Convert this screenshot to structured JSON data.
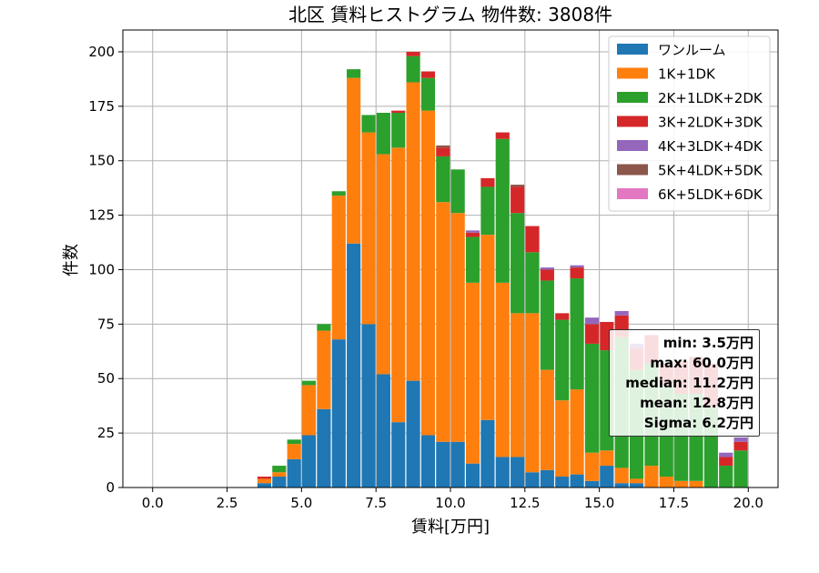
{
  "chart_data": {
    "type": "bar",
    "title": "北区 賃料ヒストグラム  物件数: 3808件",
    "xlabel": "賃料[万円]",
    "ylabel": "件数",
    "xlim": [
      -1,
      21
    ],
    "ylim": [
      0,
      210
    ],
    "xticks": [
      0.0,
      2.5,
      5.0,
      7.5,
      10.0,
      12.5,
      15.0,
      17.5,
      20.0
    ],
    "xtick_labels": [
      "0.0",
      "2.5",
      "5.0",
      "7.5",
      "10.0",
      "12.5",
      "15.0",
      "17.5",
      "20.0"
    ],
    "yticks": [
      0,
      25,
      50,
      75,
      100,
      125,
      150,
      175,
      200
    ],
    "ytick_labels": [
      "0",
      "25",
      "50",
      "75",
      "100",
      "125",
      "150",
      "175",
      "200"
    ],
    "grid": true,
    "stacked": true,
    "bin_width": 0.5,
    "legend_position": "top-right",
    "bins": [
      3.75,
      4.25,
      4.75,
      5.25,
      5.75,
      6.25,
      6.75,
      7.25,
      7.75,
      8.25,
      8.75,
      9.25,
      9.75,
      10.25,
      10.75,
      11.25,
      11.75,
      12.25,
      12.75,
      13.25,
      13.75,
      14.25,
      14.75,
      15.25,
      15.75,
      16.25,
      16.75,
      17.25,
      17.75,
      18.25,
      18.75,
      19.25,
      19.75
    ],
    "series": [
      {
        "name": "ワンルーム",
        "color": "#1f77b4",
        "values": [
          2,
          5,
          13,
          24,
          36,
          68,
          112,
          75,
          52,
          30,
          49,
          24,
          21,
          21,
          11,
          31,
          14,
          14,
          7,
          8,
          5,
          6,
          3,
          10,
          2,
          2,
          0,
          0,
          0,
          0,
          0,
          0,
          0
        ]
      },
      {
        "name": "1K+1DK",
        "color": "#ff7f0e",
        "values": [
          2,
          2,
          7,
          23,
          36,
          66,
          76,
          88,
          101,
          126,
          137,
          149,
          110,
          105,
          83,
          85,
          80,
          66,
          73,
          46,
          35,
          39,
          13,
          7,
          7,
          2,
          10,
          5,
          3,
          3,
          0,
          0,
          0
        ]
      },
      {
        "name": "2K+1LDK+2DK",
        "color": "#2ca02c",
        "values": [
          0,
          3,
          2,
          2,
          3,
          2,
          4,
          8,
          19,
          16,
          12,
          15,
          21,
          20,
          21,
          22,
          66,
          46,
          28,
          41,
          37,
          51,
          50,
          46,
          60,
          50,
          47,
          42,
          40,
          40,
          37,
          10,
          17
        ]
      },
      {
        "name": "3K+2LDK+3DK",
        "color": "#d62728",
        "values": [
          1,
          0,
          0,
          0,
          0,
          0,
          0,
          0,
          0,
          1,
          2,
          3,
          4,
          0,
          2,
          4,
          3,
          12,
          12,
          5,
          3,
          5,
          9,
          13,
          10,
          10,
          13,
          10,
          15,
          17,
          20,
          4,
          4
        ]
      },
      {
        "name": "4K+3LDK+4DK",
        "color": "#9467bd",
        "values": [
          0,
          0,
          0,
          0,
          0,
          0,
          0,
          0,
          0,
          0,
          0,
          0,
          0,
          0,
          1,
          0,
          0,
          0,
          0,
          1,
          0,
          1,
          3,
          0,
          2,
          2,
          0,
          0,
          0,
          0,
          0,
          2,
          2
        ]
      },
      {
        "name": "5K+4LDK+5DK",
        "color": "#8c564b",
        "values": [
          0,
          0,
          0,
          0,
          0,
          0,
          0,
          0,
          0,
          0,
          0,
          0,
          1,
          0,
          0,
          0,
          0,
          1,
          0,
          0,
          0,
          0,
          0,
          0,
          0,
          0,
          0,
          0,
          0,
          0,
          0,
          0,
          0
        ]
      },
      {
        "name": "6K+5LDK+6DK",
        "color": "#e377c2",
        "values": [
          0,
          0,
          0,
          0,
          0,
          0,
          0,
          0,
          0,
          0,
          0,
          0,
          0,
          0,
          0,
          0,
          0,
          0,
          0,
          0,
          0,
          0,
          0,
          0,
          0,
          0,
          0,
          0,
          0,
          0,
          0,
          0,
          0
        ]
      }
    ],
    "stats": [
      "min: 3.5万円",
      "max: 60.0万円",
      "median: 11.2万円",
      "mean: 12.8万円",
      "Sigma: 6.2万円"
    ]
  }
}
